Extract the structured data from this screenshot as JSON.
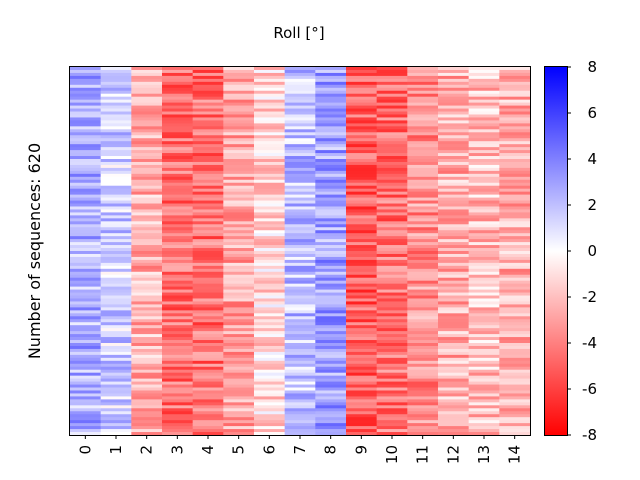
{
  "chart_data": {
    "type": "heatmap",
    "title": "Roll [°]",
    "xlabel": "",
    "ylabel": "Number of sequences: 620",
    "categories": [
      "0",
      "1",
      "2",
      "3",
      "4",
      "5",
      "6",
      "7",
      "8",
      "9",
      "10",
      "11",
      "12",
      "13",
      "14"
    ],
    "n_rows": 620,
    "column_mean_values": [
      2.5,
      1.5,
      -2.5,
      -4.5,
      -4.5,
      -2.8,
      -1.2,
      2.0,
      3.0,
      -5.0,
      -4.5,
      -3.5,
      -2.5,
      -2.0,
      -2.5
    ],
    "colorbar": {
      "range": [
        -8,
        8
      ],
      "ticks": [
        "-8",
        "-6",
        "-4",
        "-2",
        "0",
        "2",
        "4",
        "6",
        "8"
      ],
      "colormap": "bwr_reversed",
      "low_color": "#ff0000",
      "mid_color": "#ffffff",
      "high_color": "#0000ff"
    },
    "colorbar_label": "",
    "grid": false,
    "legend": "none"
  }
}
